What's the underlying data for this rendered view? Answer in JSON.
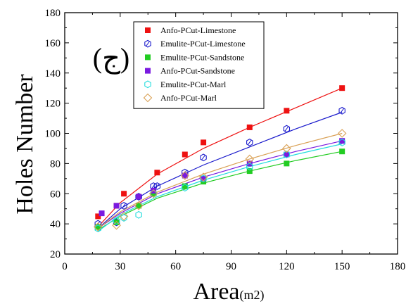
{
  "chart_data": {
    "type": "scatter",
    "xlabel": "Area",
    "xlabel_unit": "(m2)",
    "ylabel": "Holes Number",
    "annotation": "(ج)",
    "xlim": [
      0,
      180
    ],
    "ylim": [
      20,
      180
    ],
    "xticks": [
      0,
      30,
      60,
      90,
      120,
      150,
      180
    ],
    "yticks": [
      20,
      40,
      60,
      80,
      100,
      120,
      140,
      160,
      180
    ],
    "legend_position": "top-center",
    "grid": false,
    "series": [
      {
        "name": "Anfo-PCut-Limestone",
        "color": "#ee1111",
        "marker": "square-filled",
        "points": [
          [
            18,
            45
          ],
          [
            28,
            52
          ],
          [
            32,
            60
          ],
          [
            40,
            58
          ],
          [
            50,
            74
          ],
          [
            65,
            86
          ],
          [
            75,
            94
          ],
          [
            100,
            104
          ],
          [
            120,
            115
          ],
          [
            150,
            130
          ]
        ],
        "fit": [
          [
            18,
            38
          ],
          [
            30,
            54
          ],
          [
            50,
            73
          ],
          [
            75,
            90
          ],
          [
            100,
            104
          ],
          [
            125,
            117
          ],
          [
            150,
            130
          ]
        ]
      },
      {
        "name": "Emulite-PCut-Limestone",
        "color": "#1a1acc",
        "marker": "hex-open-crossed",
        "points": [
          [
            18,
            40
          ],
          [
            28,
            41
          ],
          [
            32,
            52
          ],
          [
            40,
            58
          ],
          [
            48,
            65
          ],
          [
            50,
            65
          ],
          [
            65,
            74
          ],
          [
            75,
            84
          ],
          [
            100,
            94
          ],
          [
            120,
            103
          ],
          [
            150,
            115
          ]
        ],
        "fit": [
          [
            18,
            37
          ],
          [
            30,
            50
          ],
          [
            50,
            65
          ],
          [
            75,
            79
          ],
          [
            100,
            91
          ],
          [
            125,
            103
          ],
          [
            150,
            114
          ]
        ]
      },
      {
        "name": "Emulite-PCut-Sandstone",
        "color": "#22cc22",
        "marker": "square-filled",
        "points": [
          [
            18,
            38
          ],
          [
            28,
            41
          ],
          [
            40,
            52
          ],
          [
            48,
            60
          ],
          [
            65,
            65
          ],
          [
            75,
            68
          ],
          [
            100,
            75
          ],
          [
            120,
            80
          ],
          [
            150,
            88
          ]
        ],
        "fit": [
          [
            18,
            36
          ],
          [
            30,
            45
          ],
          [
            50,
            57
          ],
          [
            75,
            67
          ],
          [
            100,
            75
          ],
          [
            125,
            82
          ],
          [
            150,
            88
          ]
        ]
      },
      {
        "name": "Anfo-PCut-Sandstone",
        "color": "#7a1ae0",
        "marker": "square-filled",
        "points": [
          [
            20,
            47
          ],
          [
            28,
            52
          ],
          [
            40,
            58
          ],
          [
            48,
            62
          ],
          [
            65,
            72
          ],
          [
            75,
            70
          ],
          [
            100,
            80
          ],
          [
            120,
            86
          ],
          [
            150,
            95
          ]
        ],
        "fit": [
          [
            18,
            37
          ],
          [
            30,
            47
          ],
          [
            50,
            60
          ],
          [
            75,
            71
          ],
          [
            100,
            80
          ],
          [
            125,
            88
          ],
          [
            150,
            95
          ]
        ]
      },
      {
        "name": "Emulite-PCut-Marl",
        "color": "#22dddd",
        "marker": "hex-open",
        "points": [
          [
            18,
            37
          ],
          [
            28,
            42
          ],
          [
            32,
            44
          ],
          [
            40,
            46
          ],
          [
            48,
            60
          ],
          [
            65,
            64
          ],
          [
            75,
            70
          ],
          [
            100,
            78
          ],
          [
            120,
            86
          ],
          [
            150,
            94
          ]
        ],
        "fit": [
          [
            18,
            35
          ],
          [
            30,
            46
          ],
          [
            50,
            58
          ],
          [
            75,
            69
          ],
          [
            100,
            78
          ],
          [
            125,
            86
          ],
          [
            150,
            93
          ]
        ]
      },
      {
        "name": "Anfo-PCut-Marl",
        "color": "#d9a054",
        "marker": "diamond-open",
        "points": [
          [
            18,
            38
          ],
          [
            28,
            39
          ],
          [
            32,
            45
          ],
          [
            40,
            52
          ],
          [
            48,
            60
          ],
          [
            65,
            72
          ],
          [
            75,
            71
          ],
          [
            100,
            83
          ],
          [
            120,
            90
          ],
          [
            150,
            100
          ]
        ],
        "fit": [
          [
            18,
            37
          ],
          [
            30,
            48
          ],
          [
            50,
            61
          ],
          [
            75,
            73
          ],
          [
            100,
            83
          ],
          [
            125,
            92
          ],
          [
            150,
            100
          ]
        ]
      }
    ]
  }
}
